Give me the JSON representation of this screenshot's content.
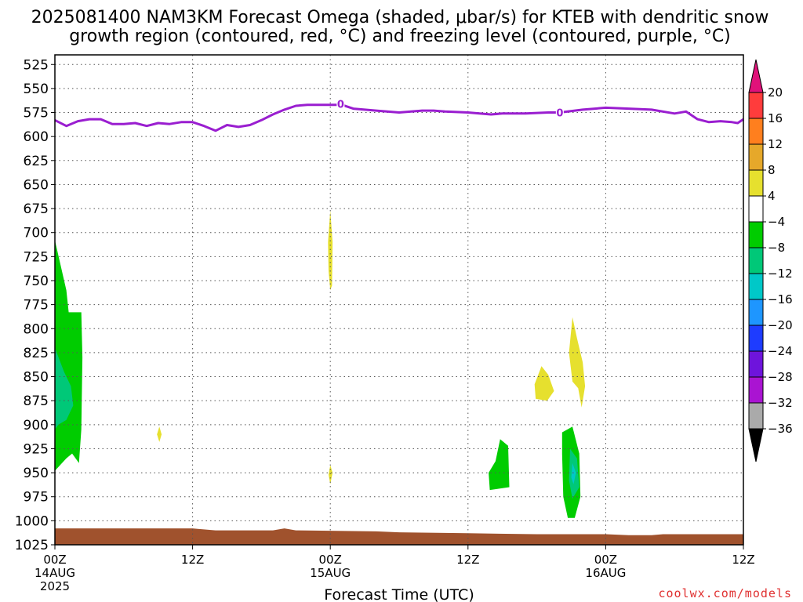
{
  "title": {
    "line1": "2025081400 NAM3KM Forecast Omega (shaded, μbar/s) for KTEB with dendritic snow",
    "line2": "growth region (contoured, red, °C) and freezing level (contoured, purple, °C)"
  },
  "credit": "coolwx.com/models",
  "chart_data": {
    "type": "time-height cross-section",
    "xlabel": "Forecast Time (UTC)",
    "x_unit": "forecast hour",
    "xlim": [
      0,
      60
    ],
    "x_ticks": [
      {
        "hour": 0,
        "lines": [
          "00Z",
          "14AUG",
          "2025"
        ]
      },
      {
        "hour": 12,
        "lines": [
          "12Z"
        ]
      },
      {
        "hour": 24,
        "lines": [
          "00Z",
          "15AUG"
        ]
      },
      {
        "hour": 36,
        "lines": [
          "12Z"
        ]
      },
      {
        "hour": 48,
        "lines": [
          "00Z",
          "16AUG"
        ]
      },
      {
        "hour": 60,
        "lines": [
          "12Z"
        ]
      }
    ],
    "y_unit": "hPa",
    "ylim": [
      1025,
      515
    ],
    "y_ticks": [
      525,
      550,
      575,
      600,
      625,
      650,
      675,
      700,
      725,
      750,
      775,
      800,
      825,
      850,
      875,
      900,
      925,
      950,
      975,
      1000,
      1025
    ],
    "grid": true,
    "colorbar": {
      "labels": [
        "20",
        "16",
        "12",
        "8",
        "4",
        "−4",
        "−8",
        "−12",
        "−16",
        "−20",
        "−24",
        "−28",
        "−32",
        "−36"
      ],
      "levels": [
        20,
        16,
        12,
        8,
        4,
        -4,
        -8,
        -12,
        -16,
        -20,
        -24,
        -28,
        -32,
        -36
      ],
      "top_color": "#e0127a",
      "bottom_color": "#000000",
      "colors": [
        "#ff3c3c",
        "#ff7f1e",
        "#e6a82a",
        "#e6e02e",
        "#ffffff",
        "#00cc00",
        "#00c878",
        "#00c8c8",
        "#1e96ff",
        "#1e3cff",
        "#6e14dc",
        "#aa14d2",
        "#aaaaaa"
      ]
    },
    "freezing_level": {
      "color": "#9a1ed0",
      "label": "0",
      "label_positions": [
        {
          "hour": 24.9,
          "p": 566
        },
        {
          "hour": 44,
          "p": 575
        }
      ],
      "points": [
        [
          0,
          583
        ],
        [
          1,
          589
        ],
        [
          2,
          584
        ],
        [
          3,
          582
        ],
        [
          4,
          582
        ],
        [
          5,
          587
        ],
        [
          6,
          587
        ],
        [
          7,
          586
        ],
        [
          8,
          589
        ],
        [
          9,
          586
        ],
        [
          10,
          587
        ],
        [
          11,
          585
        ],
        [
          12,
          585
        ],
        [
          13,
          589
        ],
        [
          14,
          594
        ],
        [
          15,
          588
        ],
        [
          16,
          590
        ],
        [
          17,
          588
        ],
        [
          18,
          583
        ],
        [
          19,
          577
        ],
        [
          20,
          572
        ],
        [
          21,
          568
        ],
        [
          22,
          567
        ],
        [
          23,
          567
        ],
        [
          24,
          567
        ],
        [
          25,
          567
        ],
        [
          26,
          571
        ],
        [
          28,
          573
        ],
        [
          30,
          575
        ],
        [
          32,
          573
        ],
        [
          33,
          573
        ],
        [
          34,
          574
        ],
        [
          36,
          575
        ],
        [
          37,
          576
        ],
        [
          38,
          577
        ],
        [
          39,
          576
        ],
        [
          41,
          576
        ],
        [
          43,
          575
        ],
        [
          44,
          575
        ],
        [
          46,
          572
        ],
        [
          48,
          570
        ],
        [
          50,
          571
        ],
        [
          52,
          572
        ],
        [
          54,
          576
        ],
        [
          55,
          574
        ],
        [
          56,
          582
        ],
        [
          57,
          585
        ],
        [
          58,
          584
        ],
        [
          59,
          585
        ],
        [
          59.5,
          586
        ],
        [
          60,
          582
        ]
      ]
    },
    "omega_regions": [
      {
        "value_range": [
          -8,
          -4
        ],
        "color": "#00cc00",
        "points": [
          [
            0,
            708
          ],
          [
            1,
            760
          ],
          [
            1.2,
            783
          ],
          [
            2.3,
            783
          ],
          [
            2.4,
            830
          ],
          [
            2.3,
            905
          ],
          [
            2.1,
            940
          ],
          [
            1.5,
            930
          ],
          [
            1,
            935
          ],
          [
            0,
            948
          ]
        ]
      },
      {
        "value_range": [
          -12,
          -8
        ],
        "color": "#00c878",
        "points": [
          [
            0,
            820
          ],
          [
            0.8,
            845
          ],
          [
            1.4,
            860
          ],
          [
            1.6,
            880
          ],
          [
            1,
            895
          ],
          [
            0.3,
            900
          ],
          [
            0,
            905
          ]
        ]
      },
      {
        "value_range": [
          4,
          8
        ],
        "color": "#e6e02e",
        "points": [
          [
            24,
            677
          ],
          [
            24.2,
            710
          ],
          [
            24.15,
            755
          ],
          [
            24,
            760
          ],
          [
            23.85,
            740
          ],
          [
            23.8,
            710
          ]
        ]
      },
      {
        "value_range": [
          4,
          8
        ],
        "color": "#e6e02e",
        "points": [
          [
            9.1,
            902
          ],
          [
            9.3,
            910
          ],
          [
            9.1,
            918
          ],
          [
            8.9,
            910
          ]
        ]
      },
      {
        "value_range": [
          4,
          8
        ],
        "color": "#e6e02e",
        "points": [
          [
            24,
            942
          ],
          [
            24.2,
            950
          ],
          [
            24,
            962
          ],
          [
            23.85,
            952
          ]
        ]
      },
      {
        "value_range": [
          4,
          8
        ],
        "color": "#e6e02e",
        "points": [
          [
            42.4,
            839
          ],
          [
            43,
            848
          ],
          [
            43.5,
            865
          ],
          [
            42.9,
            875
          ],
          [
            41.9,
            873
          ],
          [
            41.8,
            858
          ]
        ]
      },
      {
        "value_range": [
          4,
          8
        ],
        "color": "#e6e02e",
        "points": [
          [
            45.1,
            788
          ],
          [
            45.5,
            810
          ],
          [
            46,
            835
          ],
          [
            46.2,
            860
          ],
          [
            45.9,
            882
          ],
          [
            45.6,
            862
          ],
          [
            45.1,
            855
          ],
          [
            44.8,
            825
          ]
        ]
      },
      {
        "value_range": [
          -8,
          -4
        ],
        "color": "#00cc00",
        "points": [
          [
            38.8,
            915
          ],
          [
            39.5,
            922
          ],
          [
            39.6,
            965
          ],
          [
            37.9,
            968
          ],
          [
            37.8,
            950
          ],
          [
            38.4,
            938
          ]
        ]
      },
      {
        "value_range": [
          -8,
          -4
        ],
        "color": "#00cc00",
        "points": [
          [
            44.2,
            908
          ],
          [
            45.1,
            902
          ],
          [
            45.7,
            930
          ],
          [
            45.8,
            975
          ],
          [
            45.3,
            997
          ],
          [
            44.7,
            997
          ],
          [
            44.3,
            975
          ],
          [
            44.2,
            930
          ]
        ]
      },
      {
        "value_range": [
          -12,
          -8
        ],
        "color": "#00c878",
        "points": [
          [
            44.9,
            925
          ],
          [
            45.5,
            935
          ],
          [
            45.7,
            965
          ],
          [
            45.1,
            977
          ],
          [
            44.8,
            958
          ]
        ]
      },
      {
        "value_range": [
          -16,
          -12
        ],
        "color": "#00c8c8",
        "points": [
          [
            45.1,
            940
          ],
          [
            45.4,
            950
          ],
          [
            45.2,
            962
          ],
          [
            45,
            955
          ]
        ]
      }
    ],
    "terrain": {
      "color": "#a0522d",
      "note": "surface (ground level) filled below surface pressure",
      "surface_pressure": [
        [
          0,
          1008
        ],
        [
          12,
          1008
        ],
        [
          14,
          1010
        ],
        [
          19,
          1010
        ],
        [
          20,
          1008
        ],
        [
          21,
          1010
        ],
        [
          28,
          1011
        ],
        [
          30,
          1012
        ],
        [
          36,
          1013
        ],
        [
          42,
          1014
        ],
        [
          48,
          1014
        ],
        [
          50,
          1015
        ],
        [
          52,
          1015
        ],
        [
          53,
          1014
        ],
        [
          60,
          1014
        ]
      ]
    }
  }
}
